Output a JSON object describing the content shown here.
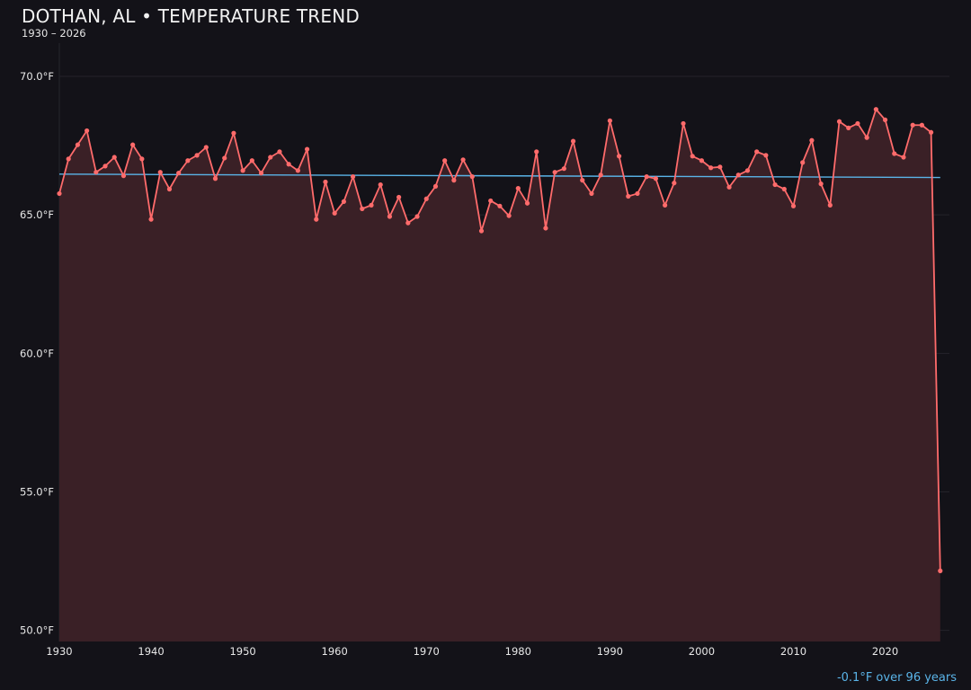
{
  "chart_data": {
    "type": "area",
    "title": "DOTHAN, AL • TEMPERATURE TREND",
    "subtitle": "1930 – 2026",
    "xlabel": "",
    "ylabel": "",
    "xlim": [
      1930,
      2027
    ],
    "ylim": [
      49.6,
      71.2
    ],
    "grid": true,
    "x_ticks": [
      1930,
      1940,
      1950,
      1960,
      1970,
      1980,
      1990,
      2000,
      2010,
      2020
    ],
    "x_tick_labels": [
      "1930",
      "1940",
      "1950",
      "1960",
      "1970",
      "1980",
      "1990",
      "2000",
      "2010",
      "2020"
    ],
    "y_ticks": [
      50,
      55,
      60,
      65,
      70
    ],
    "y_tick_labels": [
      "50.0°F",
      "55.0°F",
      "60.0°F",
      "65.0°F",
      "70.0°F"
    ],
    "series": [
      {
        "x": [
          1930,
          1931,
          1932,
          1933,
          1934,
          1935,
          1936,
          1937,
          1938,
          1939,
          1940,
          1941,
          1942,
          1943,
          1944,
          1945,
          1946,
          1947,
          1948,
          1949,
          1950,
          1951,
          1952,
          1953,
          1954,
          1955,
          1956,
          1957,
          1958,
          1959,
          1960,
          1961,
          1962,
          1963,
          1964,
          1965,
          1966,
          1967,
          1968,
          1969,
          1970,
          1971,
          1972,
          1973,
          1974,
          1975,
          1976,
          1977,
          1978,
          1979,
          1980,
          1981,
          1982,
          1983,
          1984,
          1985,
          1986,
          1987,
          1988,
          1989,
          1990,
          1991,
          1992,
          1993,
          1994,
          1995,
          1996,
          1997,
          1998,
          1999,
          2000,
          2001,
          2002,
          2003,
          2004,
          2005,
          2006,
          2007,
          2008,
          2009,
          2010,
          2011,
          2012,
          2013,
          2014,
          2015,
          2016,
          2017,
          2018,
          2019,
          2020,
          2021,
          2022,
          2023,
          2024,
          2025,
          2026
        ],
        "values": [
          65.77,
          67.02,
          67.53,
          68.04,
          66.54,
          66.76,
          67.08,
          66.41,
          67.53,
          67.02,
          64.84,
          66.54,
          65.93,
          66.51,
          66.96,
          67.15,
          67.44,
          66.31,
          67.05,
          67.95,
          66.6,
          66.96,
          66.51,
          67.08,
          67.28,
          66.83,
          66.6,
          67.37,
          64.84,
          66.19,
          65.06,
          65.48,
          66.38,
          65.22,
          65.35,
          66.09,
          64.94,
          65.64,
          64.71,
          64.94,
          65.58,
          66.03,
          66.96,
          66.25,
          66.99,
          66.38,
          64.42,
          65.51,
          65.32,
          64.97,
          65.96,
          65.42,
          67.28,
          64.52,
          66.54,
          66.67,
          67.66,
          66.25,
          65.77,
          66.44,
          68.4,
          67.12,
          65.67,
          65.77,
          66.38,
          66.31,
          65.35,
          66.15,
          68.3,
          67.12,
          66.96,
          66.7,
          66.73,
          66.0,
          66.44,
          66.6,
          67.28,
          67.15,
          66.09,
          65.93,
          65.32,
          66.89,
          67.69,
          66.12,
          65.35,
          68.37,
          68.14,
          68.3,
          67.79,
          68.81,
          68.43,
          67.21,
          67.08,
          68.24,
          68.24,
          67.98,
          52.15
        ],
        "color": "#ff6b6b",
        "fill": "#3a2026"
      }
    ],
    "trend": {
      "x": [
        1930,
        2026
      ],
      "values": [
        66.47,
        66.35
      ],
      "color": "#5ab4e8"
    },
    "annotation": {
      "text": "-0.1°F over 96 years",
      "color": "#5ab4e8"
    },
    "background": "#131218"
  }
}
